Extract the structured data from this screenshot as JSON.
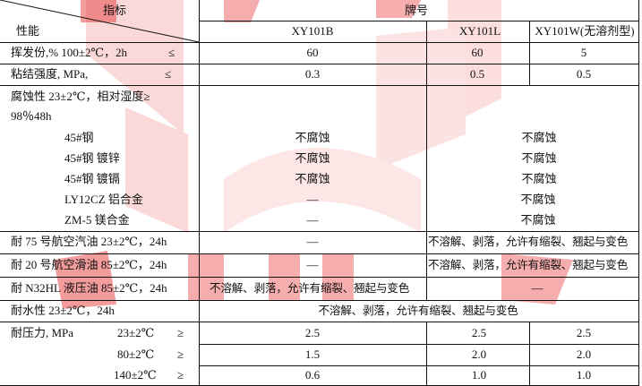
{
  "header": {
    "index_label": "指标",
    "property_label": "性能",
    "brand_label": "牌号",
    "brands": [
      "XY101B",
      "XY101L",
      "XY101W(无溶剂型)"
    ]
  },
  "volatile": {
    "label": "挥发份,%  100±2℃，2h",
    "op": "≤",
    "values": [
      "60",
      "60",
      "5"
    ]
  },
  "bond": {
    "label": "粘结强度,  MPa,",
    "op": "≤",
    "values": [
      "0.3",
      "0.5",
      "0.5"
    ]
  },
  "corrosion": {
    "label_line1": "腐蚀性  23±2℃，相对湿度≥",
    "label_line2": "98％48h",
    "items": [
      {
        "name": "45#钢",
        "b": "不腐蚀",
        "lw": "不腐蚀"
      },
      {
        "name": "45#钢 镀锌",
        "b": "不腐蚀",
        "lw": "不腐蚀"
      },
      {
        "name": "45#钢 镀镉",
        "b": "不腐蚀",
        "lw": "不腐蚀"
      },
      {
        "name": "LY12CZ 铝合金",
        "b": "—",
        "lw": "不腐蚀"
      },
      {
        "name": "ZM-5 镁合金",
        "b": "—",
        "lw": "不腐蚀"
      }
    ]
  },
  "fuel75": {
    "label": "耐 75 号航空汽油  23±2℃，24h",
    "b": "—",
    "lw": "不溶解、剥落，允许有缩裂、翘起与变色"
  },
  "oil20": {
    "label": "耐 20 号航空滑油  85±2℃，24h",
    "b": "—",
    "lw": "不溶解、剥落，允许有缩裂、翘起与变色"
  },
  "n32": {
    "label": "耐 N32HL 液压油 85±2℃，24h",
    "b": "不溶解、剥落，允许有缩裂、翘起与变色",
    "lw": "—"
  },
  "water": {
    "label": "耐水性  23±2℃，24h",
    "all": "不溶解、剥落，允许有缩裂、翘起与变色"
  },
  "pressure": {
    "label": "耐压力,  MPa",
    "rows": [
      {
        "temp": "23±2℃",
        "op": "≥",
        "values": [
          "2.5",
          "2.5",
          "2.5"
        ]
      },
      {
        "temp": "80±2℃",
        "op": "≥",
        "values": [
          "1.5",
          "2.0",
          "2.0"
        ]
      },
      {
        "temp": "140±2℃",
        "op": "≥",
        "values": [
          "0.6",
          "1.0",
          "1.0"
        ]
      }
    ]
  },
  "colors": {
    "watermark": "#e23a3a",
    "watermark_light": "#fbd6d6",
    "grid": "#111111"
  }
}
